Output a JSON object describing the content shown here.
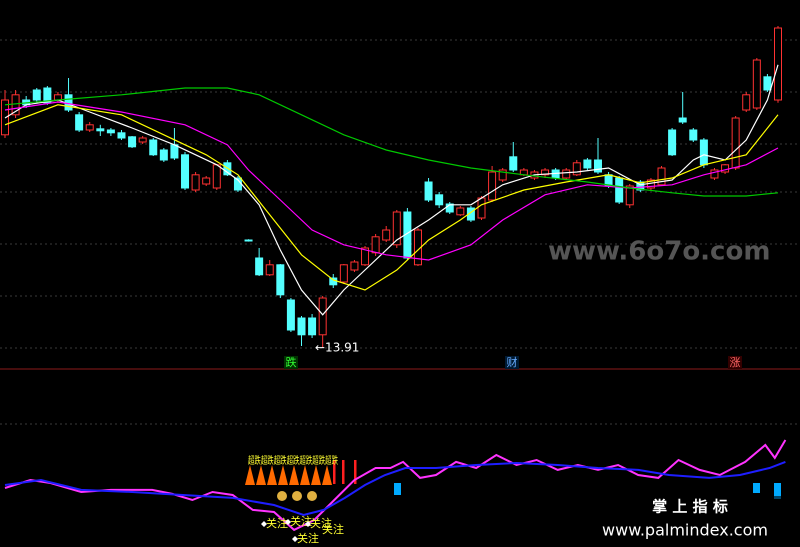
{
  "chart_data": {
    "type": "candlestick",
    "xlim": [
      0,
      73
    ],
    "ylim": [
      13.35,
      22.6
    ],
    "up_color": "#ff3232",
    "down_color": "#54ffff",
    "open": [
      19.23,
      19.73,
      20.1,
      20.35,
      20.4,
      20.1,
      20.23,
      19.73,
      19.35,
      19.38,
      19.35,
      19.28,
      19.18,
      19.05,
      19.1,
      18.85,
      18.98,
      18.73,
      17.85,
      18.0,
      17.9,
      18.53,
      18.15,
      16.6,
      16.15,
      15.73,
      15.98,
      15.1,
      14.65,
      14.65,
      14.23,
      15.65,
      15.55,
      15.85,
      15.98,
      16.28,
      16.6,
      16.48,
      17.3,
      15.98,
      18.05,
      17.73,
      17.5,
      17.23,
      17.4,
      17.15,
      17.6,
      18.1,
      18.68,
      18.23,
      18.15,
      18.23,
      18.35,
      18.15,
      18.23,
      18.6,
      18.6,
      18.23,
      18.15,
      17.48,
      18.05,
      17.9,
      17.98,
      19.35,
      19.65,
      19.35,
      19.1,
      18.15,
      18.3,
      18.4,
      19.85,
      19.9,
      20.68,
      20.1
    ],
    "close": [
      20.1,
      20.23,
      19.98,
      20.1,
      20.03,
      20.23,
      19.85,
      19.35,
      19.48,
      19.33,
      19.28,
      19.15,
      18.93,
      19.15,
      18.73,
      18.6,
      18.65,
      17.9,
      18.23,
      18.15,
      18.48,
      18.23,
      17.85,
      16.58,
      15.73,
      15.98,
      15.23,
      14.35,
      14.23,
      14.23,
      15.15,
      15.48,
      15.98,
      16.05,
      16.4,
      16.68,
      16.85,
      17.3,
      16.15,
      16.85,
      17.6,
      17.48,
      17.3,
      17.4,
      17.1,
      17.65,
      18.3,
      18.35,
      18.35,
      18.35,
      18.3,
      18.35,
      18.15,
      18.35,
      18.53,
      18.4,
      18.3,
      17.95,
      17.55,
      17.95,
      17.85,
      18.1,
      18.4,
      18.73,
      19.55,
      19.1,
      18.48,
      18.35,
      18.48,
      19.65,
      20.23,
      21.1,
      20.35,
      21.9
    ],
    "high": [
      20.35,
      20.35,
      20.2,
      20.4,
      20.45,
      20.3,
      20.65,
      19.8,
      19.55,
      19.48,
      19.4,
      19.35,
      19.2,
      19.2,
      19.15,
      18.9,
      19.4,
      18.8,
      18.3,
      18.2,
      18.5,
      18.6,
      18.2,
      16.62,
      16.4,
      16.1,
      16.0,
      15.15,
      14.7,
      14.75,
      15.2,
      15.75,
      16.0,
      16.1,
      16.45,
      16.75,
      16.95,
      17.35,
      17.4,
      16.9,
      18.15,
      17.8,
      17.55,
      17.45,
      17.45,
      17.7,
      18.45,
      18.4,
      19.05,
      18.4,
      18.35,
      18.4,
      18.4,
      18.4,
      18.6,
      18.65,
      19.15,
      18.3,
      18.2,
      18.0,
      18.1,
      18.15,
      18.45,
      19.4,
      20.3,
      19.4,
      19.15,
      18.4,
      18.5,
      19.7,
      20.3,
      21.15,
      20.75,
      21.95
    ],
    "low": [
      19.15,
      19.65,
      19.9,
      20.03,
      19.98,
      20.03,
      19.8,
      19.3,
      19.3,
      19.2,
      19.2,
      19.1,
      18.9,
      19.0,
      18.7,
      18.55,
      18.6,
      17.85,
      17.8,
      17.95,
      17.85,
      18.2,
      17.8,
      16.56,
      15.7,
      15.7,
      15.15,
      14.3,
      13.95,
      14.15,
      13.91,
      15.4,
      15.5,
      15.8,
      15.95,
      16.2,
      16.55,
      16.4,
      16.1,
      15.95,
      17.55,
      17.4,
      17.25,
      17.2,
      17.05,
      17.1,
      17.55,
      18.05,
      18.3,
      18.2,
      18.1,
      18.15,
      18.1,
      18.1,
      18.2,
      18.35,
      18.25,
      17.9,
      17.5,
      17.4,
      17.8,
      17.85,
      17.95,
      18.7,
      19.5,
      19.05,
      18.4,
      18.1,
      18.25,
      18.35,
      19.8,
      19.85,
      20.3,
      20.03
    ],
    "ma": [
      {
        "color": "#ffffff",
        "x": [
          0,
          2,
          5,
          8,
          12,
          16,
          20,
          22,
          24,
          26,
          28,
          30,
          32,
          34,
          37,
          40,
          42,
          44,
          47,
          50,
          54,
          57,
          60,
          63,
          65,
          66,
          68,
          70,
          72,
          73
        ],
        "values": [
          19.65,
          19.98,
          20.1,
          19.8,
          19.4,
          18.98,
          18.48,
          18.1,
          17.48,
          16.35,
          15.35,
          14.73,
          15.35,
          15.85,
          16.6,
          17.1,
          17.48,
          17.48,
          17.98,
          18.23,
          18.3,
          18.4,
          17.98,
          18.1,
          18.6,
          18.73,
          18.6,
          19.1,
          20.1,
          20.98
        ]
      },
      {
        "color": "#ffff00",
        "x": [
          0,
          5,
          11,
          15,
          19,
          22,
          25,
          28,
          31,
          34,
          37,
          40,
          43,
          45,
          49,
          53,
          57,
          60,
          63,
          66,
          70,
          73
        ],
        "values": [
          19.48,
          19.98,
          19.73,
          19.23,
          18.73,
          18.23,
          17.23,
          16.23,
          15.6,
          15.35,
          15.85,
          16.6,
          17.1,
          17.48,
          17.85,
          18.05,
          18.23,
          18.03,
          18.15,
          18.48,
          18.73,
          19.73
        ]
      },
      {
        "color": "#ff00ff",
        "x": [
          0,
          5,
          11,
          17,
          21,
          23,
          26,
          29,
          32,
          36,
          40,
          44,
          47,
          51,
          55,
          59,
          63,
          66,
          70,
          73
        ],
        "values": [
          19.85,
          20.05,
          19.8,
          19.48,
          18.98,
          18.35,
          17.6,
          16.85,
          16.48,
          16.23,
          16.1,
          16.48,
          17.1,
          17.73,
          17.98,
          17.9,
          17.98,
          18.23,
          18.48,
          18.9
        ]
      },
      {
        "color": "#00c800",
        "x": [
          0,
          5,
          11,
          17,
          21,
          24,
          28,
          32,
          36,
          40,
          44,
          49,
          55,
          59,
          63,
          66,
          70,
          73
        ],
        "values": [
          19.98,
          20.1,
          20.23,
          20.4,
          20.4,
          20.23,
          19.73,
          19.23,
          18.85,
          18.6,
          18.4,
          18.23,
          18.05,
          17.9,
          17.78,
          17.7,
          17.7,
          17.78
        ]
      }
    ],
    "low_label": "←13.91",
    "signals": [
      "跌",
      "财",
      "涨"
    ],
    "indicator": {
      "ylim": [
        0,
        100
      ],
      "series": [
        {
          "color": "#ff33ff",
          "x": [
            0,
            2.4,
            4.3,
            7.2,
            10,
            13.9,
            15.8,
            17.7,
            19.6,
            21.5,
            23.4,
            25.4,
            27.3,
            29.2,
            31.1,
            33,
            35,
            36.4,
            37.6,
            39.2,
            40.7,
            42.6,
            44.5,
            46.4,
            48.3,
            50.2,
            52.2,
            54.1,
            56,
            57.9,
            59.8,
            61.7,
            63.6,
            65.6,
            67.5,
            69.9,
            71.8,
            72.7,
            73.7
          ],
          "values": [
            32.5,
            37.5,
            35.6,
            30,
            31.3,
            31.3,
            28.8,
            25,
            30,
            28.1,
            18.8,
            17.5,
            6.3,
            12.5,
            25,
            37.5,
            45,
            45,
            48.8,
            38.8,
            40.6,
            48.8,
            45,
            53.1,
            46.9,
            50,
            43.8,
            46.9,
            43.8,
            46.9,
            40.6,
            38.8,
            50,
            43.8,
            40.6,
            48.8,
            59.4,
            51.3,
            62.5
          ]
        },
        {
          "color": "#1e1eff",
          "x": [
            0,
            3.4,
            7.2,
            12,
            16.8,
            21.5,
            25.4,
            28.2,
            30.1,
            32.1,
            34,
            35.9,
            37.8,
            40.7,
            44.5,
            48.3,
            52.2,
            56,
            59.8,
            62.7,
            66.5,
            69.4,
            72.2,
            73.7
          ],
          "values": [
            34.4,
            37.5,
            31.3,
            30,
            28.1,
            26.3,
            21.9,
            15.6,
            18.8,
            26.3,
            34.4,
            40.6,
            45,
            45,
            46.9,
            48.1,
            46.9,
            45,
            43.8,
            40.6,
            38.8,
            40.6,
            45,
            48.8
          ]
        }
      ],
      "signal_text": "超跌超跌超跌超跌超跌超跌超跌",
      "watch_labels": [
        "关注",
        "关注",
        "关注",
        "关注",
        "关注"
      ]
    },
    "watermarks": [
      "www.6o7o.com",
      "掌 上 指 标",
      "www.palmindex.com"
    ]
  }
}
